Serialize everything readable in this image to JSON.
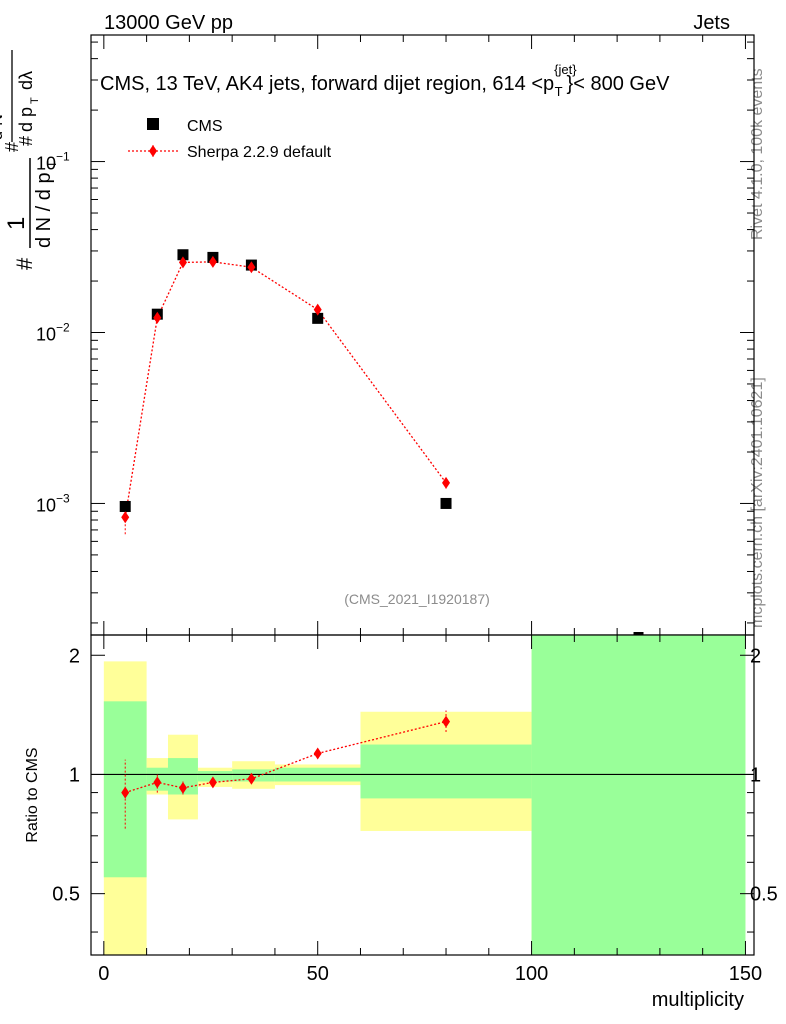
{
  "header": {
    "left": "13000 GeV pp",
    "right": "Jets"
  },
  "side_labels": {
    "rivet": "Rivet 4.1.0,  100k events",
    "site": "mcplots.cern.ch [arXiv:2401.10621]"
  },
  "watermark": "(CMS_2021_I1920187)",
  "chart_data": [
    {
      "type": "scatter",
      "title": "CMS, 13 TeV, AK4 jets, forward dijet region, 614 <p",
      "title_sup": "{jet}",
      "title_sub": "T",
      "title_end": "}< 800 GeV",
      "ylabel": "1/(dN/dpT) d²N/(dpT dλ)",
      "yscale": "log",
      "ylim": [
        0.00017,
        0.55
      ],
      "xlim": [
        -3,
        152
      ],
      "yticks": [
        {
          "value": 0.1,
          "base": "10",
          "exp": "−1"
        },
        {
          "value": 0.01,
          "base": "10",
          "exp": "−2"
        },
        {
          "value": 0.001,
          "base": "10",
          "exp": "−3"
        }
      ],
      "legend_position": "top-left",
      "series": [
        {
          "name": "CMS",
          "color": "#000000",
          "marker": "square",
          "x": [
            5,
            12.5,
            18.5,
            25.5,
            34.5,
            50,
            80,
            125
          ],
          "y": [
            0.00096,
            0.0128,
            0.0285,
            0.0275,
            0.0248,
            0.0121,
            0.001,
            0.00017
          ]
        },
        {
          "name": "Sherpa 2.2.9 default",
          "color": "#ff0000",
          "marker": "diamond",
          "x": [
            5,
            12.5,
            18.5,
            25.5,
            34.5,
            50,
            80
          ],
          "y": [
            0.00083,
            0.0122,
            0.0257,
            0.0259,
            0.0241,
            0.0136,
            0.00132
          ],
          "err_lo": [
            0.00066,
            0.0116,
            0.0251,
            0.0253,
            0.0235,
            0.013,
            0.00122
          ],
          "err_hi": [
            0.00101,
            0.0129,
            0.0263,
            0.0265,
            0.0248,
            0.0142,
            0.00143
          ]
        }
      ]
    },
    {
      "type": "scatter",
      "ylabel": "Ratio to CMS",
      "xlabel": "multiplicity",
      "xlim": [
        -3,
        152
      ],
      "ylim": [
        0.35,
        2.25
      ],
      "xticks": [
        0,
        50,
        100,
        150
      ],
      "yticks": [
        0.5,
        1,
        2
      ],
      "reference_line": 1,
      "bands": [
        {
          "x0": 0,
          "x1": 10,
          "yellow": [
            0.35,
            1.93
          ],
          "green": [
            0.55,
            1.53
          ]
        },
        {
          "x0": 10,
          "x1": 15,
          "yellow": [
            0.89,
            1.1
          ],
          "green": [
            0.91,
            1.04
          ]
        },
        {
          "x0": 15,
          "x1": 22,
          "yellow": [
            0.77,
            1.26
          ],
          "green": [
            0.89,
            1.1
          ]
        },
        {
          "x0": 22,
          "x1": 30,
          "yellow": [
            0.93,
            1.04
          ],
          "green": [
            0.96,
            1.02
          ]
        },
        {
          "x0": 30,
          "x1": 40,
          "yellow": [
            0.92,
            1.08
          ],
          "green": [
            0.96,
            1.03
          ]
        },
        {
          "x0": 40,
          "x1": 60,
          "yellow": [
            0.94,
            1.06
          ],
          "green": [
            0.96,
            1.04
          ]
        },
        {
          "x0": 60,
          "x1": 100,
          "yellow": [
            0.72,
            1.44
          ],
          "green": [
            0.87,
            1.19
          ]
        },
        {
          "x0": 100,
          "x1": 150,
          "yellow": [
            0.35,
            2.25
          ],
          "green": [
            0.35,
            2.25
          ]
        }
      ],
      "series": [
        {
          "name": "Sherpa 2.2.9 default",
          "color": "#ff0000",
          "marker": "diamond",
          "x": [
            5,
            12.5,
            18.5,
            25.5,
            34.5,
            50,
            80
          ],
          "y": [
            0.9,
            0.955,
            0.925,
            0.955,
            0.975,
            1.13,
            1.36
          ],
          "err_lo": [
            0.73,
            0.9,
            0.89,
            0.93,
            0.95,
            1.1,
            1.28
          ],
          "err_hi": [
            1.09,
            1.01,
            0.96,
            0.98,
            1.0,
            1.16,
            1.45
          ]
        }
      ]
    }
  ]
}
